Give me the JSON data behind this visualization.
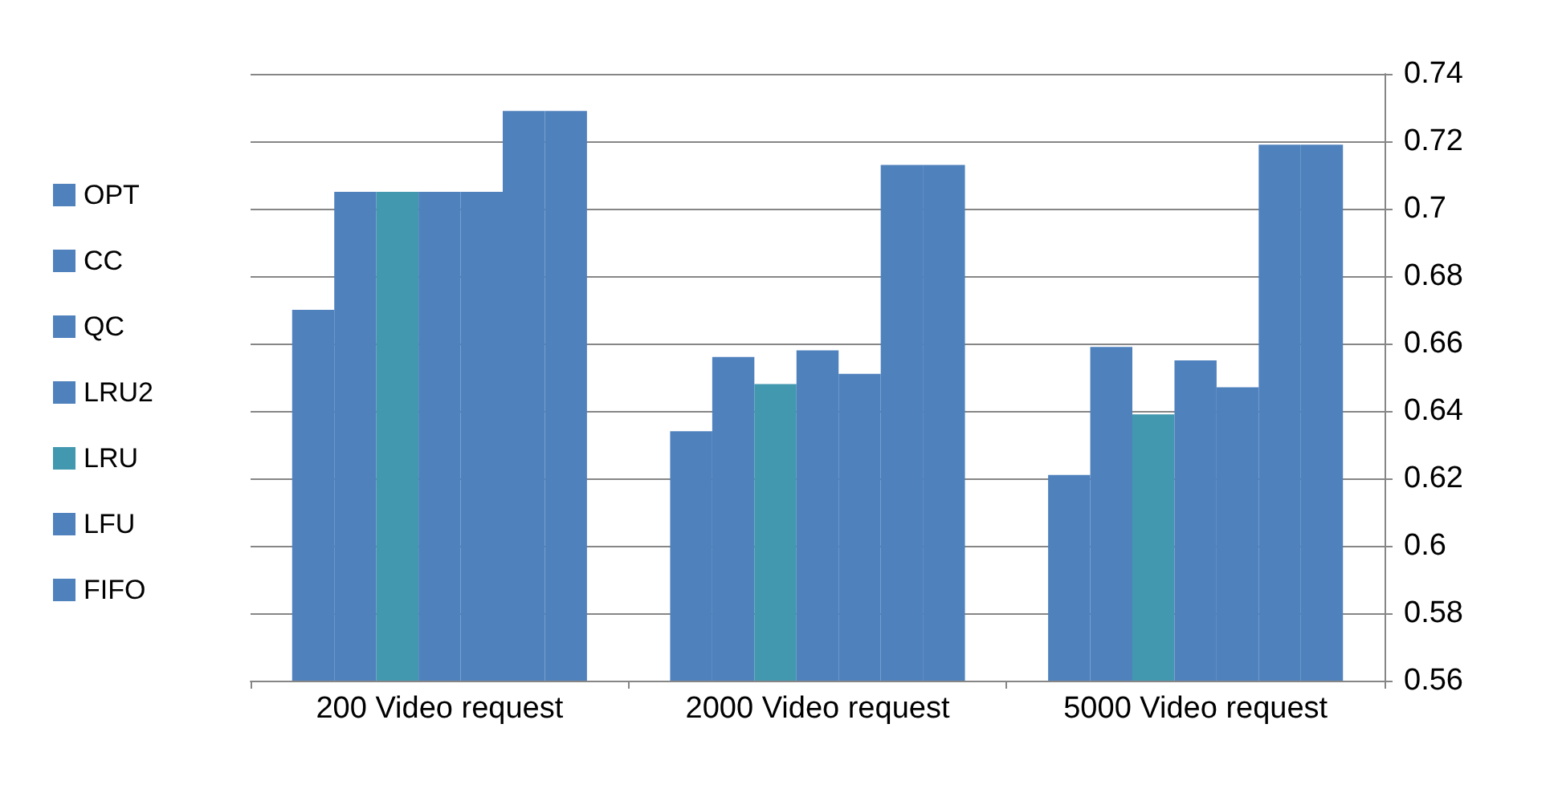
{
  "chart_data": {
    "type": "bar",
    "categories": [
      "200 Video request",
      "2000 Video request",
      "5000 Video request"
    ],
    "series": [
      {
        "name": "FIFO",
        "color": "#4f81bd",
        "values": [
          0.67,
          0.634,
          0.621
        ]
      },
      {
        "name": "LFU",
        "color": "#4f81bd",
        "values": [
          0.705,
          0.656,
          0.659
        ]
      },
      {
        "name": "LRU",
        "color": "#4198af",
        "values": [
          0.705,
          0.648,
          0.639
        ]
      },
      {
        "name": "LRU2",
        "color": "#4f81bd",
        "values": [
          0.705,
          0.658,
          0.655
        ]
      },
      {
        "name": "QC",
        "color": "#4f81bd",
        "values": [
          0.705,
          0.651,
          0.647
        ]
      },
      {
        "name": "CC",
        "color": "#4f81bd",
        "values": [
          0.729,
          0.713,
          0.719
        ]
      },
      {
        "name": "OPT",
        "color": "#4f81bd",
        "values": [
          0.729,
          0.713,
          0.719
        ]
      }
    ],
    "ylim": [
      0.56,
      0.74
    ],
    "yticks": [
      0.56,
      0.58,
      0.6,
      0.62,
      0.64,
      0.66,
      0.68,
      0.7,
      0.72,
      0.74
    ],
    "grid": "y",
    "legend": "left"
  }
}
